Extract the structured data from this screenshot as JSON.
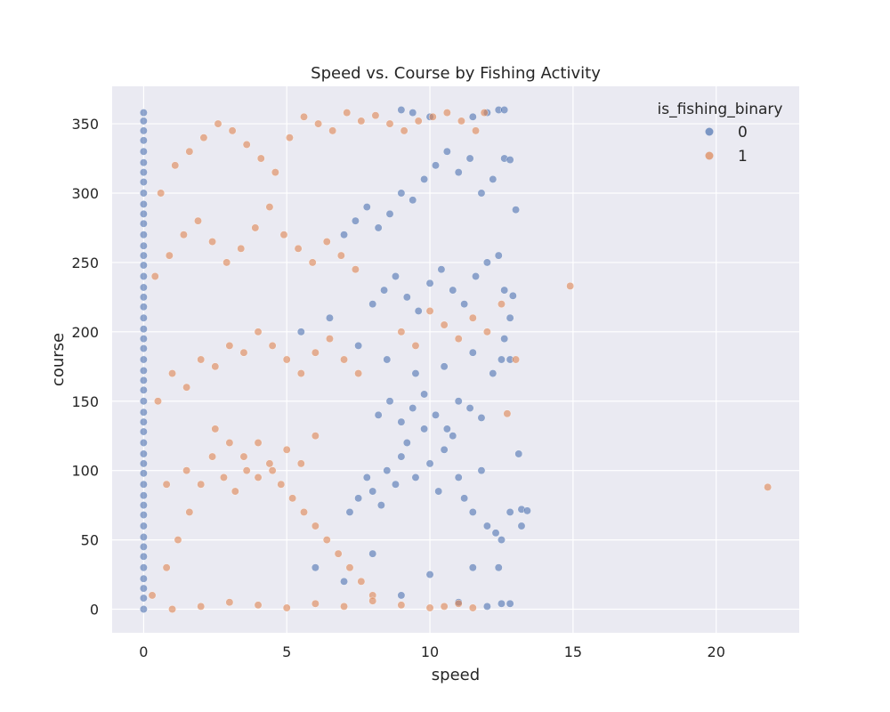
{
  "chart_data": {
    "type": "scatter",
    "title": "Speed vs. Course by Fishing Activity",
    "xlabel": "speed",
    "ylabel": "course",
    "xlim": [
      -1.1,
      22.9
    ],
    "ylim": [
      -17,
      377
    ],
    "xticks": [
      0,
      5,
      10,
      15,
      20
    ],
    "yticks": [
      0,
      50,
      100,
      150,
      200,
      250,
      300,
      350
    ],
    "grid": true,
    "legend": {
      "title": "is_fishing_binary",
      "placement": "top-right"
    },
    "series": [
      {
        "name": "0",
        "color": "#4c72b0",
        "points": [
          [
            0,
            0
          ],
          [
            0,
            8
          ],
          [
            0,
            15
          ],
          [
            0,
            22
          ],
          [
            0,
            30
          ],
          [
            0,
            38
          ],
          [
            0,
            45
          ],
          [
            0,
            52
          ],
          [
            0,
            60
          ],
          [
            0,
            68
          ],
          [
            0,
            75
          ],
          [
            0,
            82
          ],
          [
            0,
            90
          ],
          [
            0,
            98
          ],
          [
            0,
            105
          ],
          [
            0,
            112
          ],
          [
            0,
            120
          ],
          [
            0,
            128
          ],
          [
            0,
            135
          ],
          [
            0,
            142
          ],
          [
            0,
            150
          ],
          [
            0,
            158
          ],
          [
            0,
            165
          ],
          [
            0,
            172
          ],
          [
            0,
            180
          ],
          [
            0,
            188
          ],
          [
            0,
            195
          ],
          [
            0,
            202
          ],
          [
            0,
            210
          ],
          [
            0,
            218
          ],
          [
            0,
            225
          ],
          [
            0,
            232
          ],
          [
            0,
            240
          ],
          [
            0,
            248
          ],
          [
            0,
            255
          ],
          [
            0,
            262
          ],
          [
            0,
            270
          ],
          [
            0,
            278
          ],
          [
            0,
            285
          ],
          [
            0,
            292
          ],
          [
            0,
            300
          ],
          [
            0,
            308
          ],
          [
            0,
            315
          ],
          [
            0,
            322
          ],
          [
            0,
            330
          ],
          [
            0,
            338
          ],
          [
            0,
            345
          ],
          [
            0,
            352
          ],
          [
            0,
            358
          ],
          [
            7.2,
            70
          ],
          [
            7.5,
            80
          ],
          [
            7.8,
            95
          ],
          [
            8.0,
            85
          ],
          [
            8.3,
            75
          ],
          [
            8.5,
            100
          ],
          [
            8.8,
            90
          ],
          [
            9.0,
            110
          ],
          [
            9.2,
            120
          ],
          [
            9.5,
            95
          ],
          [
            9.8,
            130
          ],
          [
            10.0,
            105
          ],
          [
            10.3,
            85
          ],
          [
            10.5,
            115
          ],
          [
            10.8,
            125
          ],
          [
            11.0,
            95
          ],
          [
            11.2,
            80
          ],
          [
            11.5,
            70
          ],
          [
            11.8,
            100
          ],
          [
            12.0,
            60
          ],
          [
            12.3,
            55
          ],
          [
            12.5,
            50
          ],
          [
            12.8,
            70
          ],
          [
            13.2,
            72
          ],
          [
            13.4,
            71
          ],
          [
            13.1,
            112
          ],
          [
            13.2,
            60
          ],
          [
            8.2,
            140
          ],
          [
            8.6,
            150
          ],
          [
            9.0,
            135
          ],
          [
            9.4,
            145
          ],
          [
            9.8,
            155
          ],
          [
            10.2,
            140
          ],
          [
            10.6,
            130
          ],
          [
            11.0,
            150
          ],
          [
            11.4,
            145
          ],
          [
            11.8,
            138
          ],
          [
            8.0,
            220
          ],
          [
            8.4,
            230
          ],
          [
            8.8,
            240
          ],
          [
            9.2,
            225
          ],
          [
            9.6,
            215
          ],
          [
            10.0,
            235
          ],
          [
            10.4,
            245
          ],
          [
            10.8,
            230
          ],
          [
            11.2,
            220
          ],
          [
            11.6,
            240
          ],
          [
            12.0,
            250
          ],
          [
            12.4,
            255
          ],
          [
            12.6,
            230
          ],
          [
            12.8,
            210
          ],
          [
            12.9,
            226
          ],
          [
            7.0,
            270
          ],
          [
            7.4,
            280
          ],
          [
            7.8,
            290
          ],
          [
            8.2,
            275
          ],
          [
            8.6,
            285
          ],
          [
            9.0,
            300
          ],
          [
            9.4,
            295
          ],
          [
            9.8,
            310
          ],
          [
            10.2,
            320
          ],
          [
            10.6,
            330
          ],
          [
            11.0,
            315
          ],
          [
            11.4,
            325
          ],
          [
            11.8,
            300
          ],
          [
            12.2,
            310
          ],
          [
            12.6,
            325
          ],
          [
            13.0,
            288
          ],
          [
            12.8,
            324
          ],
          [
            12.4,
            360
          ],
          [
            12.6,
            360
          ],
          [
            9.0,
            360
          ],
          [
            9.4,
            358
          ],
          [
            10.0,
            355
          ],
          [
            11.5,
            355
          ],
          [
            12.0,
            358
          ],
          [
            6.0,
            30
          ],
          [
            7.0,
            20
          ],
          [
            8.0,
            40
          ],
          [
            9.0,
            10
          ],
          [
            10.0,
            25
          ],
          [
            11.0,
            5
          ],
          [
            12.0,
            2
          ],
          [
            12.5,
            4
          ],
          [
            12.8,
            4
          ],
          [
            11.5,
            30
          ],
          [
            12.4,
            30
          ],
          [
            5.5,
            200
          ],
          [
            6.5,
            210
          ],
          [
            7.5,
            190
          ],
          [
            8.5,
            180
          ],
          [
            9.5,
            170
          ],
          [
            10.5,
            175
          ],
          [
            11.5,
            185
          ],
          [
            12.2,
            170
          ],
          [
            12.5,
            180
          ],
          [
            12.8,
            180
          ],
          [
            12.6,
            195
          ]
        ]
      },
      {
        "name": "1",
        "color": "#dd8452",
        "points": [
          [
            0.3,
            10
          ],
          [
            0.8,
            30
          ],
          [
            1.2,
            50
          ],
          [
            1.6,
            70
          ],
          [
            2.0,
            90
          ],
          [
            2.4,
            110
          ],
          [
            2.8,
            95
          ],
          [
            3.2,
            85
          ],
          [
            3.6,
            100
          ],
          [
            4.0,
            120
          ],
          [
            4.4,
            105
          ],
          [
            4.8,
            90
          ],
          [
            5.2,
            80
          ],
          [
            5.6,
            70
          ],
          [
            6.0,
            60
          ],
          [
            6.4,
            50
          ],
          [
            6.8,
            40
          ],
          [
            7.2,
            30
          ],
          [
            7.6,
            20
          ],
          [
            8.0,
            10
          ],
          [
            0.5,
            150
          ],
          [
            1.0,
            170
          ],
          [
            1.5,
            160
          ],
          [
            2.0,
            180
          ],
          [
            2.5,
            175
          ],
          [
            3.0,
            190
          ],
          [
            3.5,
            185
          ],
          [
            4.0,
            200
          ],
          [
            4.5,
            190
          ],
          [
            5.0,
            180
          ],
          [
            5.5,
            170
          ],
          [
            6.0,
            185
          ],
          [
            6.5,
            195
          ],
          [
            7.0,
            180
          ],
          [
            7.5,
            170
          ],
          [
            0.4,
            240
          ],
          [
            0.9,
            255
          ],
          [
            1.4,
            270
          ],
          [
            1.9,
            280
          ],
          [
            2.4,
            265
          ],
          [
            2.9,
            250
          ],
          [
            3.4,
            260
          ],
          [
            3.9,
            275
          ],
          [
            4.4,
            290
          ],
          [
            4.9,
            270
          ],
          [
            5.4,
            260
          ],
          [
            5.9,
            250
          ],
          [
            6.4,
            265
          ],
          [
            6.9,
            255
          ],
          [
            7.4,
            245
          ],
          [
            0.6,
            300
          ],
          [
            1.1,
            320
          ],
          [
            1.6,
            330
          ],
          [
            2.1,
            340
          ],
          [
            2.6,
            350
          ],
          [
            3.1,
            345
          ],
          [
            3.6,
            335
          ],
          [
            4.1,
            325
          ],
          [
            4.6,
            315
          ],
          [
            5.1,
            340
          ],
          [
            5.6,
            355
          ],
          [
            6.1,
            350
          ],
          [
            6.6,
            345
          ],
          [
            7.1,
            358
          ],
          [
            7.6,
            352
          ],
          [
            8.1,
            356
          ],
          [
            8.6,
            350
          ],
          [
            9.1,
            345
          ],
          [
            9.6,
            352
          ],
          [
            10.1,
            355
          ],
          [
            10.6,
            358
          ],
          [
            11.1,
            352
          ],
          [
            11.6,
            345
          ],
          [
            11.9,
            358
          ],
          [
            1.0,
            0
          ],
          [
            2.0,
            2
          ],
          [
            3.0,
            5
          ],
          [
            4.0,
            3
          ],
          [
            5.0,
            1
          ],
          [
            6.0,
            4
          ],
          [
            7.0,
            2
          ],
          [
            8.0,
            6
          ],
          [
            9.0,
            3
          ],
          [
            10.0,
            1
          ],
          [
            10.5,
            2
          ],
          [
            11.0,
            4
          ],
          [
            11.5,
            1
          ],
          [
            3.0,
            120
          ],
          [
            3.5,
            110
          ],
          [
            4.0,
            95
          ],
          [
            4.5,
            100
          ],
          [
            5.0,
            115
          ],
          [
            5.5,
            105
          ],
          [
            6.0,
            125
          ],
          [
            2.5,
            130
          ],
          [
            1.5,
            100
          ],
          [
            0.8,
            90
          ],
          [
            9.0,
            200
          ],
          [
            9.5,
            190
          ],
          [
            10.0,
            215
          ],
          [
            10.5,
            205
          ],
          [
            11.0,
            195
          ],
          [
            11.5,
            210
          ],
          [
            12.0,
            200
          ],
          [
            12.5,
            220
          ],
          [
            13.0,
            180
          ],
          [
            12.7,
            141
          ],
          [
            14.9,
            233
          ],
          [
            21.8,
            88
          ]
        ]
      }
    ]
  }
}
